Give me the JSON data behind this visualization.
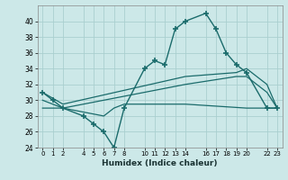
{
  "title": "",
  "xlabel": "Humidex (Indice chaleur)",
  "ylabel": "",
  "background_color": "#cce8e8",
  "grid_color": "#aacfcf",
  "line_color": "#1a6b6b",
  "xlim": [
    -0.5,
    23.5
  ],
  "ylim": [
    24,
    42
  ],
  "yticks": [
    24,
    26,
    28,
    30,
    32,
    34,
    36,
    38,
    40
  ],
  "xtick_labels": [
    "0",
    "1",
    "2",
    "4",
    "5",
    "6",
    "7",
    "8",
    "10",
    "11",
    "12",
    "13",
    "14",
    "16",
    "17",
    "18",
    "19",
    "20",
    "22",
    "23"
  ],
  "xtick_positions": [
    0,
    1,
    2,
    4,
    5,
    6,
    7,
    8,
    10,
    11,
    12,
    13,
    14,
    16,
    17,
    18,
    19,
    20,
    22,
    23
  ],
  "series": [
    {
      "x": [
        0,
        1,
        2,
        4,
        5,
        6,
        7,
        8,
        10,
        11,
        12,
        13,
        14,
        16,
        17,
        18,
        19,
        20,
        22,
        23
      ],
      "y": [
        31,
        30,
        29,
        28,
        27,
        26,
        24,
        29,
        34,
        35,
        34.5,
        39,
        40,
        41,
        39,
        36,
        34.5,
        33.5,
        29,
        29
      ],
      "marker": true
    },
    {
      "x": [
        0,
        2,
        14,
        19,
        20,
        22,
        23
      ],
      "y": [
        31,
        29.5,
        33,
        33.5,
        34,
        32,
        29
      ],
      "marker": false
    },
    {
      "x": [
        0,
        2,
        14,
        19,
        20,
        22,
        23
      ],
      "y": [
        30,
        29,
        32,
        33,
        33,
        31,
        29
      ],
      "marker": false
    },
    {
      "x": [
        0,
        2,
        6,
        7,
        8,
        10,
        14,
        20,
        22,
        23
      ],
      "y": [
        29,
        29,
        28,
        29,
        29.5,
        29.5,
        29.5,
        29,
        29,
        29
      ],
      "marker": false
    }
  ]
}
